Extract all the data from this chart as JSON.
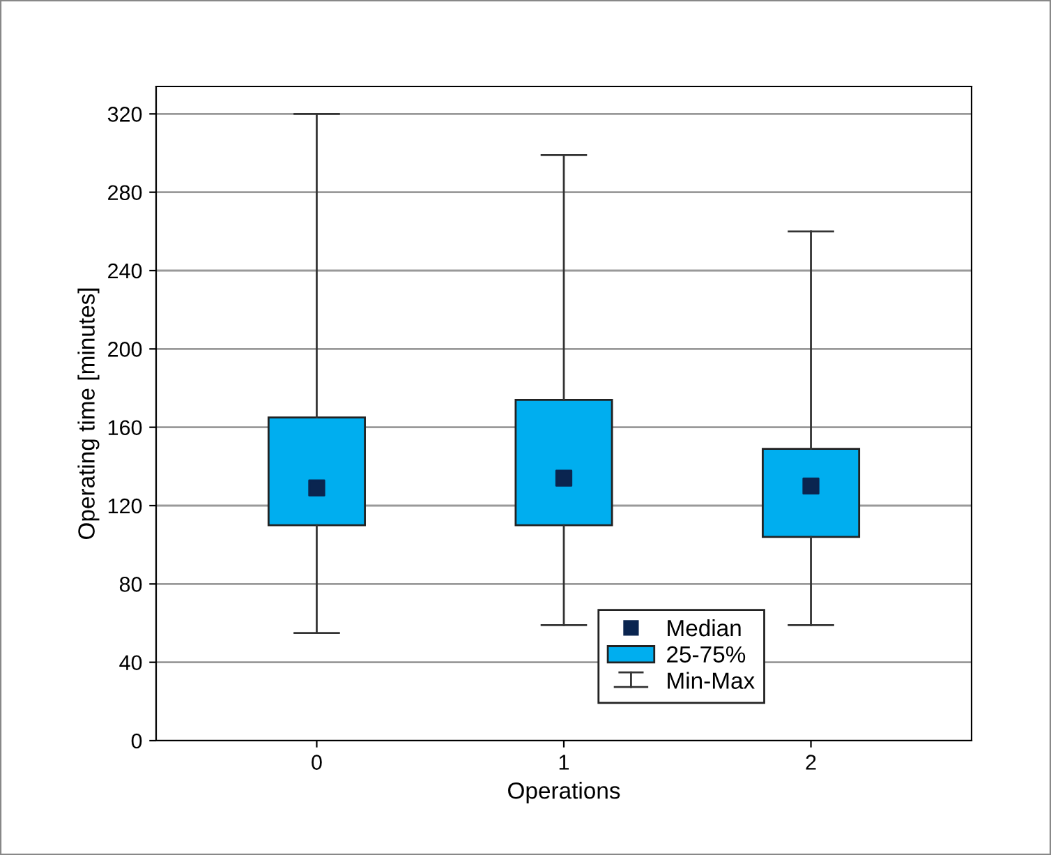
{
  "chart_data": {
    "type": "box",
    "xlabel": "Operations",
    "ylabel": "Operating time [minutes]",
    "categories": [
      "0",
      "1",
      "2"
    ],
    "ylim": [
      0,
      334
    ],
    "yticks": [
      0,
      40,
      80,
      120,
      160,
      200,
      240,
      280,
      320
    ],
    "grid": "y",
    "legend": "bottom right",
    "annotations": [
      "Median",
      "Min-Max"
    ],
    "series": [
      {
        "name": "25-75%",
        "color": "#00aeef",
        "boxes": [
          {
            "low": 55,
            "q1": 110,
            "median": 129,
            "q3": 165,
            "high": 320
          },
          {
            "low": 59,
            "q1": 110,
            "median": 134,
            "q3": 174,
            "high": 299
          },
          {
            "low": 59,
            "q1": 104,
            "median": 130,
            "q3": 149,
            "high": 260
          }
        ]
      }
    ]
  }
}
